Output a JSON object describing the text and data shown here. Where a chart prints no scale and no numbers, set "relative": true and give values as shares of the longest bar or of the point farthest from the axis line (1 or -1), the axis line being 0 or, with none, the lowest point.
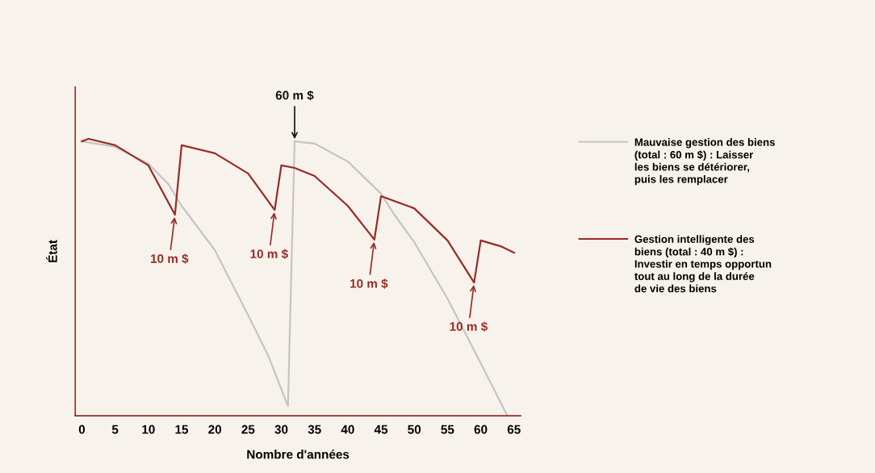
{
  "chart_data": {
    "type": "line",
    "relative": true,
    "xlabel": "Nombre d'années",
    "ylabel": "État",
    "xlim": [
      -1,
      66
    ],
    "xticks": [
      0,
      5,
      10,
      15,
      20,
      25,
      30,
      35,
      40,
      45,
      50,
      55,
      60,
      65
    ],
    "grid": false,
    "legend": "right",
    "marker": "none",
    "line_style": "solid",
    "series": [
      {
        "name": "Mauvaise gestion des biens (total : 60 m $) : Laisser les biens se détériorer, puis les remplacer",
        "color": "#c4c4c4",
        "x": [
          0,
          5,
          10,
          13,
          15,
          20,
          25,
          28,
          31,
          32,
          35,
          40,
          45,
          47,
          50,
          55,
          60,
          64
        ],
        "values": [
          0.991,
          0.971,
          0.91,
          0.837,
          0.758,
          0.598,
          0.364,
          0.219,
          0.035,
          0.991,
          0.983,
          0.918,
          0.802,
          0.726,
          0.627,
          0.423,
          0.19,
          0
        ]
      },
      {
        "name": "Gestion intelligente des biens (total : 40 m $) : Investir en temps opportun tout au long de la durée de vie des biens",
        "color": "#9b2a26",
        "x": [
          0,
          1,
          5,
          10,
          14,
          15,
          20,
          25,
          29,
          30,
          32,
          35,
          40,
          44,
          45,
          50,
          55,
          59,
          60,
          63,
          65
        ],
        "values": [
          0.991,
          1,
          0.977,
          0.904,
          0.726,
          0.977,
          0.948,
          0.875,
          0.743,
          0.904,
          0.895,
          0.866,
          0.758,
          0.636,
          0.793,
          0.749,
          0.633,
          0.481,
          0.633,
          0.612,
          0.589
        ]
      }
    ],
    "annotations": [
      {
        "text": "10 m $",
        "x": 14,
        "y": 0.726
      },
      {
        "text": "10 m $",
        "x": 29,
        "y": 0.743
      },
      {
        "text": "10 m $",
        "x": 44,
        "y": 0.636
      },
      {
        "text": "10 m $",
        "x": 59,
        "y": 0.481
      },
      {
        "text": "60 m $",
        "x": 32,
        "y": 0.991
      }
    ]
  }
}
